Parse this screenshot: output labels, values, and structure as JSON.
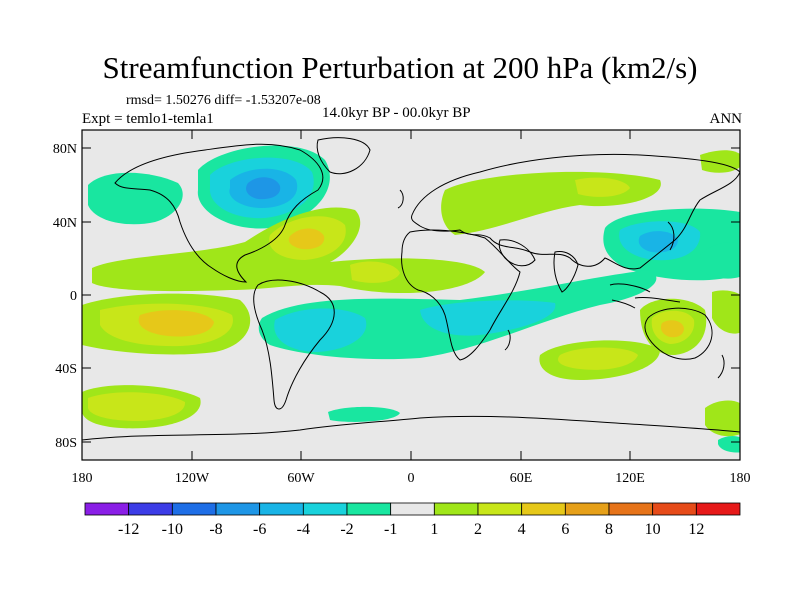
{
  "title": "Streamfunction Perturbation at 200 hPa (km2/s)",
  "stats": "rmsd= 1.50276 diff= -1.53207e-08",
  "experiment": "Expt = temlo1-temla1",
  "period": "14.0kyr BP - 00.0kyr BP",
  "season": "ANN",
  "axes": {
    "lat_ticks": [
      "80N",
      "40N",
      "0",
      "40S",
      "80S"
    ],
    "lon_ticks": [
      "180",
      "120W",
      "60W",
      "0",
      "60E",
      "120E",
      "180"
    ]
  },
  "colorbar": {
    "labels": [
      "-12",
      "-10",
      "-8",
      "-6",
      "-4",
      "-2",
      "-1",
      "1",
      "2",
      "4",
      "6",
      "8",
      "10",
      "12"
    ],
    "colors": [
      "#8a1ee6",
      "#3c3ce6",
      "#1e6ee6",
      "#1e96e6",
      "#19b4e6",
      "#19d2dc",
      "#19e6a0",
      "#e8e8e8",
      "#a0e619",
      "#c8e619",
      "#e6c819",
      "#e6a019",
      "#e67319",
      "#e64b19",
      "#e61919"
    ]
  },
  "chart_data": {
    "type": "contour-map",
    "title": "Streamfunction Perturbation at 200 hPa (km2/s)",
    "units": "km2/s",
    "xrange_lon": [
      -180,
      180
    ],
    "yrange_lat": [
      -90,
      90
    ],
    "levels": [
      -12,
      -10,
      -8,
      -6,
      -4,
      -2,
      -1,
      1,
      2,
      4,
      6,
      8,
      10,
      12
    ],
    "features": [
      {
        "name": "North Atlantic / Canada low",
        "lon": -80,
        "lat": 58,
        "peak": -5
      },
      {
        "name": "Western Atlantic high",
        "lon": -55,
        "lat": 35,
        "peak": 5
      },
      {
        "name": "NE Pacific low",
        "lon": -160,
        "lat": 48,
        "peak": -2
      },
      {
        "name": "Eurasian high",
        "lon": 50,
        "lat": 55,
        "peak": 3
      },
      {
        "name": "NW Pacific low",
        "lon": 135,
        "lat": 35,
        "peak": -4
      },
      {
        "name": "Tropical Pacific high",
        "lon": -130,
        "lat": -20,
        "peak": 5
      },
      {
        "name": "South Atlantic low",
        "lon": -60,
        "lat": -20,
        "peak": -4
      },
      {
        "name": "Southern Indian Ocean high",
        "lon": 80,
        "lat": -40,
        "peak": 4
      },
      {
        "name": "Australia high",
        "lon": 145,
        "lat": -25,
        "peak": 4
      },
      {
        "name": "South Pacific high",
        "lon": -140,
        "lat": -65,
        "peak": 3
      }
    ]
  }
}
